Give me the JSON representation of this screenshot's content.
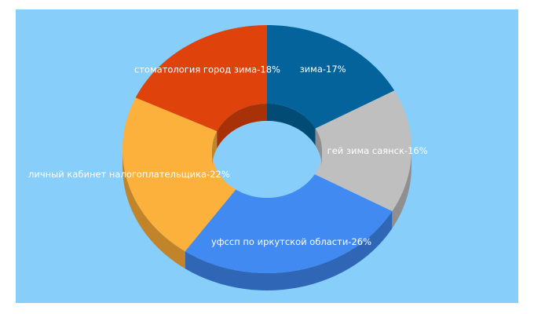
{
  "chart_data": {
    "type": "pie",
    "donut": true,
    "three_d": true,
    "background": "#87cefa",
    "slices": [
      {
        "label": "зима-17%",
        "value": 17,
        "color": "#03639a",
        "side": "#024b74"
      },
      {
        "label": "гей зима саянск-16%",
        "value": 16,
        "color": "#bfbfbf",
        "side": "#8f8f8f"
      },
      {
        "label": "уфссп по иркутской области-26%",
        "value": 26,
        "color": "#418af1",
        "side": "#2f67b6"
      },
      {
        "label": "личный кабинет налогоплательщика-22%",
        "value": 22,
        "color": "#fbb13c",
        "side": "#c1842a"
      },
      {
        "label": "стоматология город зима-18%",
        "value": 18,
        "color": "#e0420b",
        "side": "#a93108"
      }
    ]
  }
}
